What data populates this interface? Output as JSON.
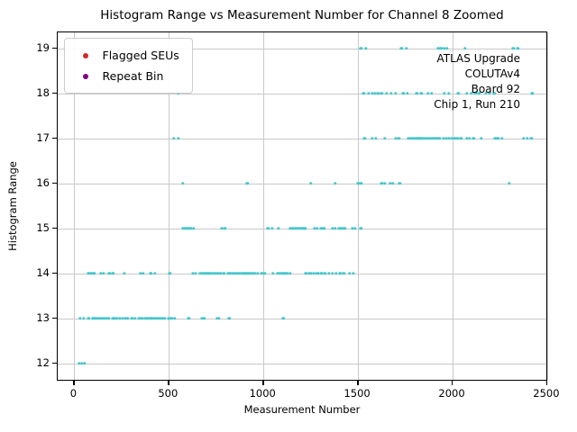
{
  "chart_data": {
    "type": "scatter",
    "title": "Histogram Range vs Measurement Number for Channel 8 Zoomed",
    "xlabel": "Measurement Number",
    "ylabel": "Histogram Range",
    "xlim": [
      -90,
      2505
    ],
    "ylim": [
      11.6,
      19.36
    ],
    "xticks": [
      0,
      500,
      1000,
      1500,
      2000,
      2500
    ],
    "yticks": [
      12,
      13,
      14,
      15,
      16,
      17,
      18,
      19
    ],
    "grid": true,
    "legend_position": "upper-left",
    "legend": [
      {
        "label": "Flagged SEUs",
        "color": "#d62728"
      },
      {
        "label": "Repeat Bin",
        "color": "#800080"
      }
    ],
    "annotation": {
      "lines": [
        "ATLAS Upgrade",
        "COLUTAv4",
        "Board 92",
        "Chip 1, Run 210"
      ]
    },
    "point_color": "#47c6cb",
    "series": [
      {
        "name": "Histogram Range",
        "color": "#47c6cb",
        "groups": [
          {
            "y": 19,
            "x": [
              1515,
              1540,
              1730,
              1755,
              1925,
              1940,
              1955,
              1970,
              2065,
              2320,
              2345
            ]
          },
          {
            "y": 18,
            "x": [
              550,
              1530,
              1555,
              1575,
              1590,
              1605,
              1625,
              1650,
              1675,
              1700,
              1740,
              1760,
              1810,
              1835,
              1870,
              1890,
              1955,
              1980,
              2030,
              2075,
              2100,
              2120,
              2140,
              2175,
              2195,
              2220,
              2420
            ]
          },
          {
            "y": 17,
            "x": [
              525,
              550,
              1535,
              1575,
              1595,
              1640,
              1700,
              1715,
              1765,
              1775,
              1785,
              1795,
              1805,
              1815,
              1825,
              1835,
              1845,
              1855,
              1865,
              1875,
              1885,
              1895,
              1905,
              1915,
              1930,
              1950,
              1965,
              1980,
              1995,
              2010,
              2025,
              2045,
              2075,
              2090,
              2110,
              2150,
              2225,
              2240,
              2260,
              2375,
              2395,
              2415
            ]
          },
          {
            "y": 16,
            "x": [
              575,
              915,
              1250,
              1380,
              1500,
              1515,
              1625,
              1640,
              1670,
              1685,
              1720,
              2300
            ]
          },
          {
            "y": 15,
            "x": [
              575,
              585,
              600,
              615,
              630,
              780,
              795,
              1025,
              1045,
              1080,
              1140,
              1150,
              1160,
              1170,
              1180,
              1190,
              1200,
              1210,
              1220,
              1270,
              1285,
              1305,
              1320,
              1365,
              1380,
              1400,
              1415,
              1430,
              1470,
              1485,
              1515
            ]
          },
          {
            "y": 14,
            "x": [
              75,
              90,
              105,
              140,
              155,
              185,
              205,
              265,
              350,
              365,
              405,
              425,
              505,
              625,
              640,
              665,
              675,
              685,
              695,
              705,
              715,
              725,
              735,
              745,
              755,
              765,
              775,
              790,
              815,
              825,
              835,
              845,
              855,
              865,
              875,
              885,
              895,
              905,
              915,
              925,
              935,
              945,
              955,
              970,
              990,
              1005,
              1050,
              1075,
              1085,
              1095,
              1105,
              1115,
              1125,
              1140,
              1225,
              1240,
              1250,
              1265,
              1280,
              1290,
              1305,
              1325,
              1345,
              1365,
              1385,
              1405,
              1425,
              1455,
              1475
            ]
          },
          {
            "y": 13,
            "x": [
              30,
              50,
              75,
              100,
              110,
              120,
              130,
              140,
              150,
              160,
              170,
              180,
              205,
              215,
              225,
              240,
              255,
              270,
              280,
              305,
              320,
              340,
              350,
              360,
              375,
              385,
              400,
              410,
              420,
              430,
              440,
              450,
              460,
              470,
              480,
              500,
              515,
              530,
              605,
              675,
              685,
              755,
              765,
              820,
              1105
            ]
          },
          {
            "y": 12,
            "x": [
              25,
              40,
              55
            ]
          }
        ]
      }
    ]
  }
}
